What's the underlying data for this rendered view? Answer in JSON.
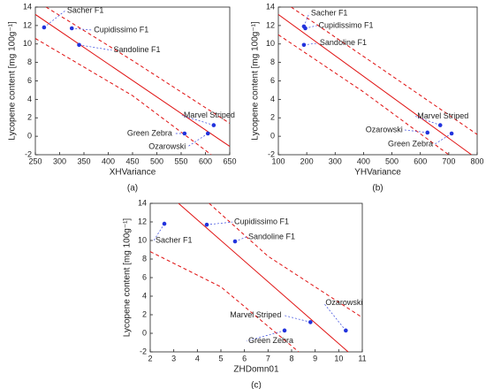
{
  "chart_data": [
    {
      "type": "scatter",
      "caption": "(a)",
      "xlabel": "XHVariance",
      "ylabel": "Lycopene content [mg 100g⁻¹]",
      "xlim": [
        250,
        650
      ],
      "xticks": [
        250,
        300,
        350,
        400,
        450,
        500,
        550,
        600,
        650
      ],
      "ylim": [
        -2,
        14
      ],
      "yticks": [
        -2,
        0,
        2,
        4,
        6,
        8,
        10,
        12,
        14
      ],
      "points": {
        "color": "#2233dd",
        "labels": [
          "Sacher F1",
          "Cupidissimo F1",
          "Sandoline F1",
          "Green Zebra",
          "Ozarowski",
          "Marvel Striped"
        ],
        "x": [
          268,
          325,
          340,
          557,
          605,
          617
        ],
        "values": [
          11.8,
          11.7,
          9.9,
          0.3,
          0.3,
          1.2
        ]
      },
      "lines": [
        {
          "color": "#e01010",
          "style": "solid",
          "x": [
            250,
            650
          ],
          "values": [
            13.2,
            -1.1
          ]
        },
        {
          "color": "#e01010",
          "style": "dashed",
          "x": [
            272,
            450,
            650
          ],
          "values": [
            14,
            8.2,
            1.4
          ]
        },
        {
          "color": "#e01010",
          "style": "dashed",
          "x": [
            250,
            450,
            612
          ],
          "values": [
            10.6,
            4.4,
            -2
          ]
        }
      ]
    },
    {
      "type": "scatter",
      "caption": "(b)",
      "xlabel": "YHVariance",
      "ylabel": "Lycopene content [mg 100g⁻¹]",
      "xlim": [
        100,
        800
      ],
      "xticks": [
        100,
        200,
        300,
        400,
        500,
        600,
        700,
        800
      ],
      "ylim": [
        -2,
        14
      ],
      "yticks": [
        -2,
        0,
        2,
        4,
        6,
        8,
        10,
        12,
        14
      ],
      "points": {
        "color": "#2233dd",
        "labels": [
          "Sacher F1",
          "Cupidissimo F1",
          "Sandoline F1",
          "Ozarowski",
          "Green Zebra",
          "Marvel Striped"
        ],
        "x": [
          190,
          195,
          190,
          625,
          710,
          670
        ],
        "values": [
          11.9,
          11.7,
          9.9,
          0.4,
          0.3,
          1.2
        ]
      },
      "lines": [
        {
          "color": "#e01010",
          "style": "solid",
          "x": [
            100,
            780
          ],
          "values": [
            13.2,
            -2
          ]
        },
        {
          "color": "#e01010",
          "style": "dashed",
          "x": [
            145,
            450,
            800
          ],
          "values": [
            14,
            7.6,
            0.2
          ]
        },
        {
          "color": "#e01010",
          "style": "dashed",
          "x": [
            100,
            400,
            700
          ],
          "values": [
            11,
            4.8,
            -2
          ]
        }
      ]
    },
    {
      "type": "scatter",
      "caption": "(c)",
      "xlabel": "ZHDomn01",
      "ylabel": "Lycopene content [mg 100g⁻¹]",
      "xlim": [
        2,
        11
      ],
      "xticks": [
        2,
        3,
        4,
        5,
        6,
        7,
        8,
        9,
        10,
        11
      ],
      "ylim": [
        -2,
        14
      ],
      "yticks": [
        -2,
        0,
        2,
        4,
        6,
        8,
        10,
        12,
        14
      ],
      "points": {
        "color": "#2233dd",
        "labels": [
          "Sacher F1",
          "Cupidissimo F1",
          "Sandoline F1",
          "Marvel Striped",
          "Green Zebra",
          "Ozarowski"
        ],
        "x": [
          2.6,
          4.4,
          5.6,
          8.8,
          7.7,
          10.3
        ],
        "values": [
          11.8,
          11.7,
          9.9,
          1.2,
          0.3,
          0.3
        ]
      },
      "lines": [
        {
          "color": "#e01010",
          "style": "solid",
          "x": [
            3.2,
            10.4
          ],
          "values": [
            14,
            -2
          ]
        },
        {
          "color": "#e01010",
          "style": "dashed",
          "x": [
            4.5,
            7,
            11
          ],
          "values": [
            14,
            8.3,
            1.7
          ]
        },
        {
          "color": "#e01010",
          "style": "dashed",
          "x": [
            2,
            5,
            8.3
          ],
          "values": [
            8.8,
            5,
            -2
          ]
        }
      ]
    }
  ]
}
